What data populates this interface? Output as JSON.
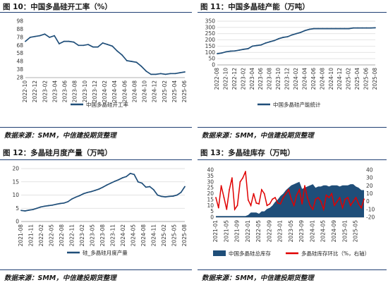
{
  "colors": {
    "navy": "#1f4e79",
    "red": "#e00000",
    "rule": "#1f3f73"
  },
  "sources": [
    "数据来源：SMM，中信建投期货整理",
    "数据来源：SMM，中信建投期货整理",
    "数据来源：SMM，中信建投期货整理",
    "数据来源：SMM，中信建投期货整理"
  ],
  "chart_data": [
    {
      "id": "fig10",
      "type": "line",
      "title": "图 10：中国多晶硅开工率（%）",
      "legend": "中国多晶硅开工率",
      "legend_position": "bottom",
      "ylim": [
        28,
        98
      ],
      "yticks": [
        28,
        38,
        48,
        58,
        68,
        78,
        88,
        98
      ],
      "xticks": [
        "2022-10",
        "2022-12",
        "2023-02",
        "2023-04",
        "2023-06",
        "2023-08",
        "2023-10",
        "2023-12",
        "2024-02",
        "2024-04",
        "2024-06",
        "2024-08",
        "2024-10",
        "2024-12",
        "2025-02",
        "2025-04",
        "2025-06"
      ],
      "series": [
        {
          "values": [
            73,
            78,
            79,
            80,
            82,
            78,
            80,
            70,
            73,
            73,
            72,
            68,
            68,
            69,
            66,
            66,
            71,
            69,
            67,
            61,
            56,
            49,
            48,
            47,
            42,
            36,
            32,
            32,
            33,
            32,
            33,
            33,
            34,
            35
          ]
        }
      ]
    },
    {
      "id": "fig11",
      "type": "line",
      "title": "图 11：中国多晶硅产能（万吨）",
      "legend": "中国多晶硅产能统计",
      "legend_position": "bottom",
      "ylim": [
        0,
        350
      ],
      "yticks": [
        0,
        50,
        100,
        150,
        200,
        250,
        300,
        350
      ],
      "xticks": [
        "2022-08",
        "2022-10",
        "2022-12",
        "2023-02",
        "2023-04",
        "2023-06",
        "2023-08",
        "2023-10",
        "2023-12",
        "2024-02",
        "2024-04",
        "2024-06",
        "2024-08",
        "2024-10",
        "2024-12",
        "2025-02",
        "2025-04",
        "2025-06",
        "2025-08"
      ],
      "series": [
        {
          "values": [
            90,
            95,
            105,
            110,
            112,
            118,
            125,
            130,
            150,
            155,
            160,
            175,
            185,
            195,
            210,
            220,
            225,
            240,
            250,
            260,
            275,
            285,
            290,
            290,
            290,
            290,
            290,
            290,
            290,
            290,
            290,
            295,
            295,
            295,
            295,
            295,
            297
          ]
        }
      ]
    },
    {
      "id": "fig12",
      "type": "line",
      "title": "图 12：多晶硅月度产量（万吨）",
      "legend": "硅_多晶硅月度产量",
      "legend_position": "bottom",
      "ylim": [
        0,
        20
      ],
      "yticks": [
        0,
        5,
        10,
        15,
        20
      ],
      "xticks": [
        "2021-08",
        "2021-11",
        "2022-02",
        "2022-05",
        "2022-08",
        "2022-11",
        "2023-02",
        "2023-05",
        "2023-08",
        "2023-11",
        "2024-02",
        "2024-05",
        "2024-08",
        "2024-11",
        "2025-02",
        "2025-05",
        "2025-08"
      ],
      "series": [
        {
          "values": [
            4.2,
            4.0,
            4.3,
            4.5,
            5.0,
            5.5,
            5.8,
            6.0,
            6.2,
            6.5,
            6.8,
            7.0,
            7.5,
            8.5,
            9.2,
            9.8,
            10.5,
            11.0,
            11.3,
            11.8,
            12.3,
            13.0,
            13.8,
            14.5,
            15.2,
            15.8,
            16.5,
            17.0,
            18.2,
            17.8,
            15.0,
            14.5,
            13.0,
            13.2,
            12.0,
            10.0,
            9.5,
            9.3,
            9.5,
            9.6,
            10.0,
            11.0,
            13.2
          ]
        }
      ]
    },
    {
      "id": "fig13",
      "type": "area",
      "title": "图 13：多晶硅库存（万吨）",
      "legend_position": "bottom",
      "ylim_left": [
        0,
        40
      ],
      "yticks_left": [
        0,
        5,
        10,
        15,
        20,
        25,
        30,
        35,
        40
      ],
      "ylim_right": [
        -20,
        40
      ],
      "yticks_right": [
        -20,
        -10,
        0,
        10,
        20,
        30,
        40
      ],
      "xticks": [
        "2021-01",
        "2021-02",
        "2021-03",
        "2021-04",
        "2021-05",
        "2021-06",
        "2021-07",
        "2021-08",
        "2021-09",
        "2021-10",
        "2021-11",
        "2021-12",
        "2022-01",
        "2022-02",
        "2022-03",
        "2022-04",
        "2022-05",
        "2022-06",
        "2022-07",
        "2022-08",
        "2022-09",
        "2022-10",
        "2022-11",
        "2022-12",
        "2023-01",
        "2023-02",
        "2023-03",
        "2023-04",
        "2023-05",
        "2023-06",
        "2023-07",
        "2023-08",
        "2023-09",
        "2023-10",
        "2023-11",
        "2023-12",
        "2024-01",
        "2024-02",
        "2024-03",
        "2024-04",
        "2024-05",
        "2024-06",
        "2024-07",
        "2024-08",
        "2024-09",
        "2024-10",
        "2024-11",
        "2024-12",
        "2025-01",
        "2025-02",
        "2025-03",
        "2025-04",
        "2025-05",
        "2025-06",
        "2025-07",
        "2025-08"
      ],
      "series": [
        {
          "name": "中国多晶硅总库存",
          "axis": "left",
          "type": "area",
          "values": [
            1,
            1,
            1,
            1,
            1,
            1,
            1,
            1,
            1,
            1,
            1,
            1,
            2,
            4,
            4,
            4,
            3,
            5,
            5,
            7,
            8,
            10,
            13,
            15,
            18,
            20,
            23,
            25,
            27,
            28,
            29,
            30,
            24,
            25,
            26,
            27,
            28,
            25,
            26,
            26,
            27,
            27,
            26,
            27,
            27,
            27,
            26,
            27,
            27,
            27,
            28,
            28,
            26,
            25,
            23,
            23
          ]
        },
        {
          "name": "多晶硅库存环比（%，右轴）",
          "axis": "right",
          "type": "line",
          "values": [
            5,
            -8,
            20,
            5,
            -10,
            15,
            30,
            -10,
            -5,
            25,
            30,
            38,
            2,
            -5,
            10,
            -2,
            -3,
            15,
            10,
            -5,
            -3,
            3,
            5,
            -2,
            -3,
            5,
            10,
            15,
            3,
            -5,
            8,
            15,
            -3,
            20,
            5,
            -5,
            -10,
            3,
            5,
            0,
            -10,
            8,
            5,
            10,
            -5,
            0,
            5,
            -8,
            3,
            5,
            -5,
            0,
            5,
            -3,
            -8,
            3
          ]
        }
      ]
    }
  ]
}
